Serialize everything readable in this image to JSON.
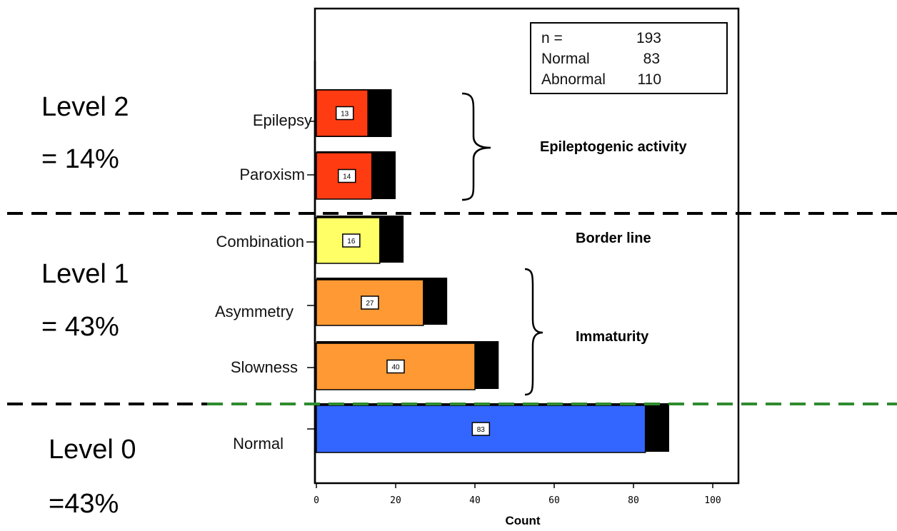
{
  "chart_data": {
    "type": "bar",
    "orientation": "horizontal",
    "stacked": true,
    "xlabel": "Count",
    "xlim": [
      0,
      107
    ],
    "xticks": [
      0,
      20,
      40,
      60,
      80,
      100
    ],
    "categories": [
      "Epilepsy",
      "Paroxism",
      "Combination",
      "Asymmetry",
      "Slowness",
      "Normal"
    ],
    "series": [
      {
        "values": [
          13,
          14,
          16,
          27,
          40,
          83
        ],
        "data_labels": [
          "13",
          "14",
          "16",
          "27",
          "40",
          "83"
        ]
      },
      {
        "values": [
          6,
          6,
          6,
          6,
          6,
          6
        ]
      }
    ],
    "bar_colors": [
      "#ff3b12",
      "#ff3b12",
      "#ffff66",
      "#ff9933",
      "#ff9933",
      "#3366ff"
    ],
    "overlay_color": "#000000",
    "legend": {
      "position": "top-right",
      "rows": [
        {
          "label": "n =",
          "value": "193"
        },
        {
          "label": "Normal",
          "value": "83"
        },
        {
          "label": "Abnormal",
          "value": "110"
        }
      ]
    },
    "groups": [
      {
        "label": "Epileptogenic activity",
        "categories": [
          "Epilepsy",
          "Paroxism"
        ]
      },
      {
        "label": "Border line",
        "categories": [
          "Combination"
        ]
      },
      {
        "label": "Immaturity",
        "categories": [
          "Asymmetry",
          "Slowness"
        ]
      }
    ],
    "levels": [
      {
        "title": "Level 2",
        "percent": "= 14%",
        "categories": [
          "Epilepsy",
          "Paroxism"
        ]
      },
      {
        "title": "Level 1",
        "percent": "= 43%",
        "categories": [
          "Combination",
          "Asymmetry",
          "Slowness"
        ]
      },
      {
        "title": "Level 0",
        "percent": "=43%",
        "categories": [
          "Normal"
        ]
      }
    ],
    "divider_colors": [
      "#000000",
      "#000000",
      "#2e8b2e"
    ]
  }
}
